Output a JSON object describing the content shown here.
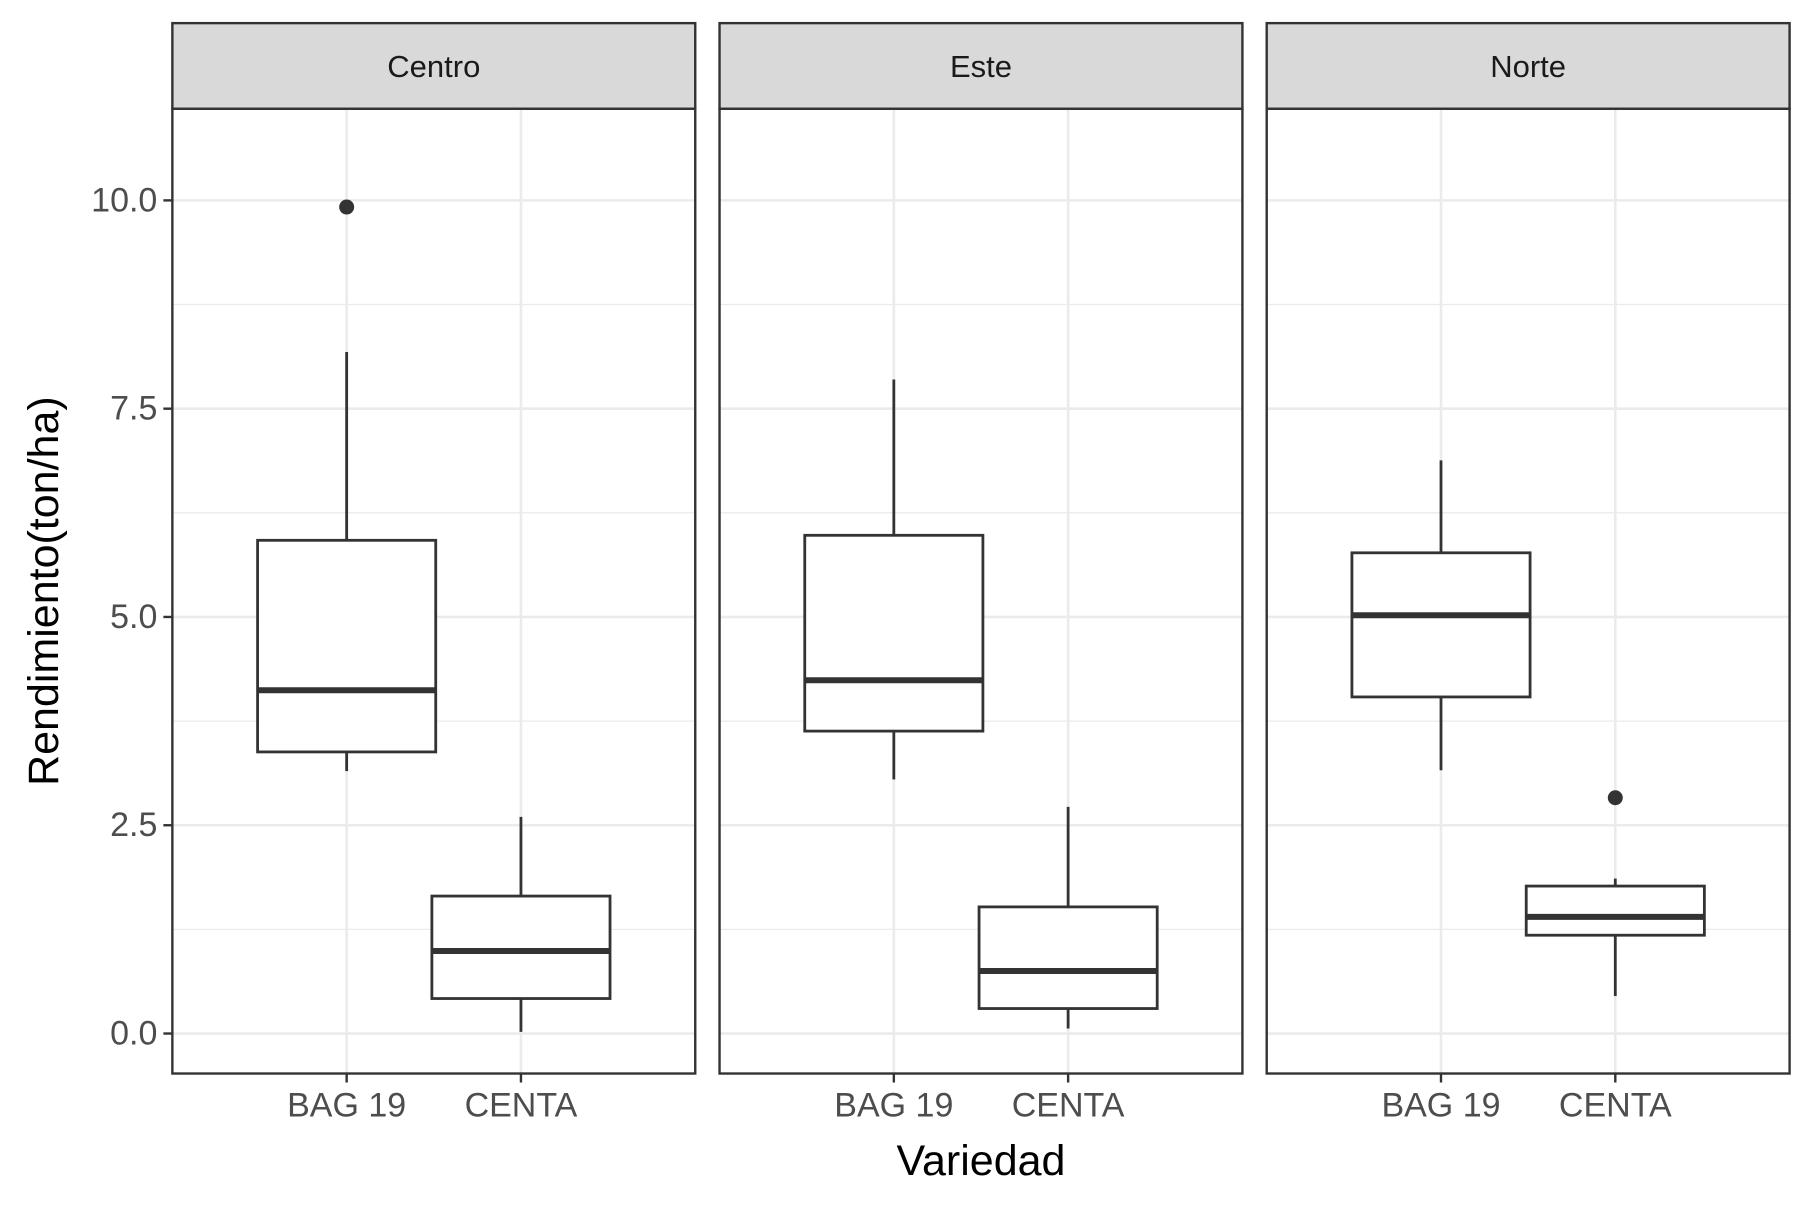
{
  "chart_data": {
    "type": "boxplot",
    "xlabel": "Variedad",
    "ylabel": "Rendimiento(ton/ha)",
    "ylim": [
      -0.48,
      11.1
    ],
    "yticks": [
      0.0,
      2.5,
      5.0,
      7.5,
      10.0
    ],
    "ytick_labels": [
      "0.0",
      "2.5",
      "5.0",
      "7.5",
      "10.0"
    ],
    "minor_gridlines": [
      1.25,
      3.75,
      6.25,
      8.75
    ],
    "grid": true,
    "categories": [
      "BAG 19",
      "CENTA"
    ],
    "colors": {
      "box_stroke": "#333333",
      "strip_fill": "#d9d9d9",
      "panel_border": "#333333",
      "grid": "#ebebeb",
      "axis_text": "#4d4d4d",
      "title_text": "#000000"
    },
    "facets": [
      {
        "name": "Centro",
        "boxes": [
          {
            "category": "BAG 19",
            "whisker_low": 3.15,
            "q1": 3.38,
            "median": 4.12,
            "q3": 5.92,
            "whisker_high": 8.18,
            "outliers": [
              9.92
            ]
          },
          {
            "category": "CENTA",
            "whisker_low": 0.02,
            "q1": 0.42,
            "median": 0.99,
            "q3": 1.65,
            "whisker_high": 2.6,
            "outliers": []
          }
        ]
      },
      {
        "name": "Este",
        "boxes": [
          {
            "category": "BAG 19",
            "whisker_low": 3.05,
            "q1": 3.63,
            "median": 4.24,
            "q3": 5.98,
            "whisker_high": 7.85,
            "outliers": []
          },
          {
            "category": "CENTA",
            "whisker_low": 0.06,
            "q1": 0.3,
            "median": 0.75,
            "q3": 1.52,
            "whisker_high": 2.72,
            "outliers": []
          }
        ]
      },
      {
        "name": "Norte",
        "boxes": [
          {
            "category": "BAG 19",
            "whisker_low": 3.16,
            "q1": 4.04,
            "median": 5.02,
            "q3": 5.77,
            "whisker_high": 6.88,
            "outliers": []
          },
          {
            "category": "CENTA",
            "whisker_low": 0.45,
            "q1": 1.18,
            "median": 1.4,
            "q3": 1.77,
            "whisker_high": 1.86,
            "outliers": [
              2.83
            ]
          }
        ]
      }
    ]
  }
}
